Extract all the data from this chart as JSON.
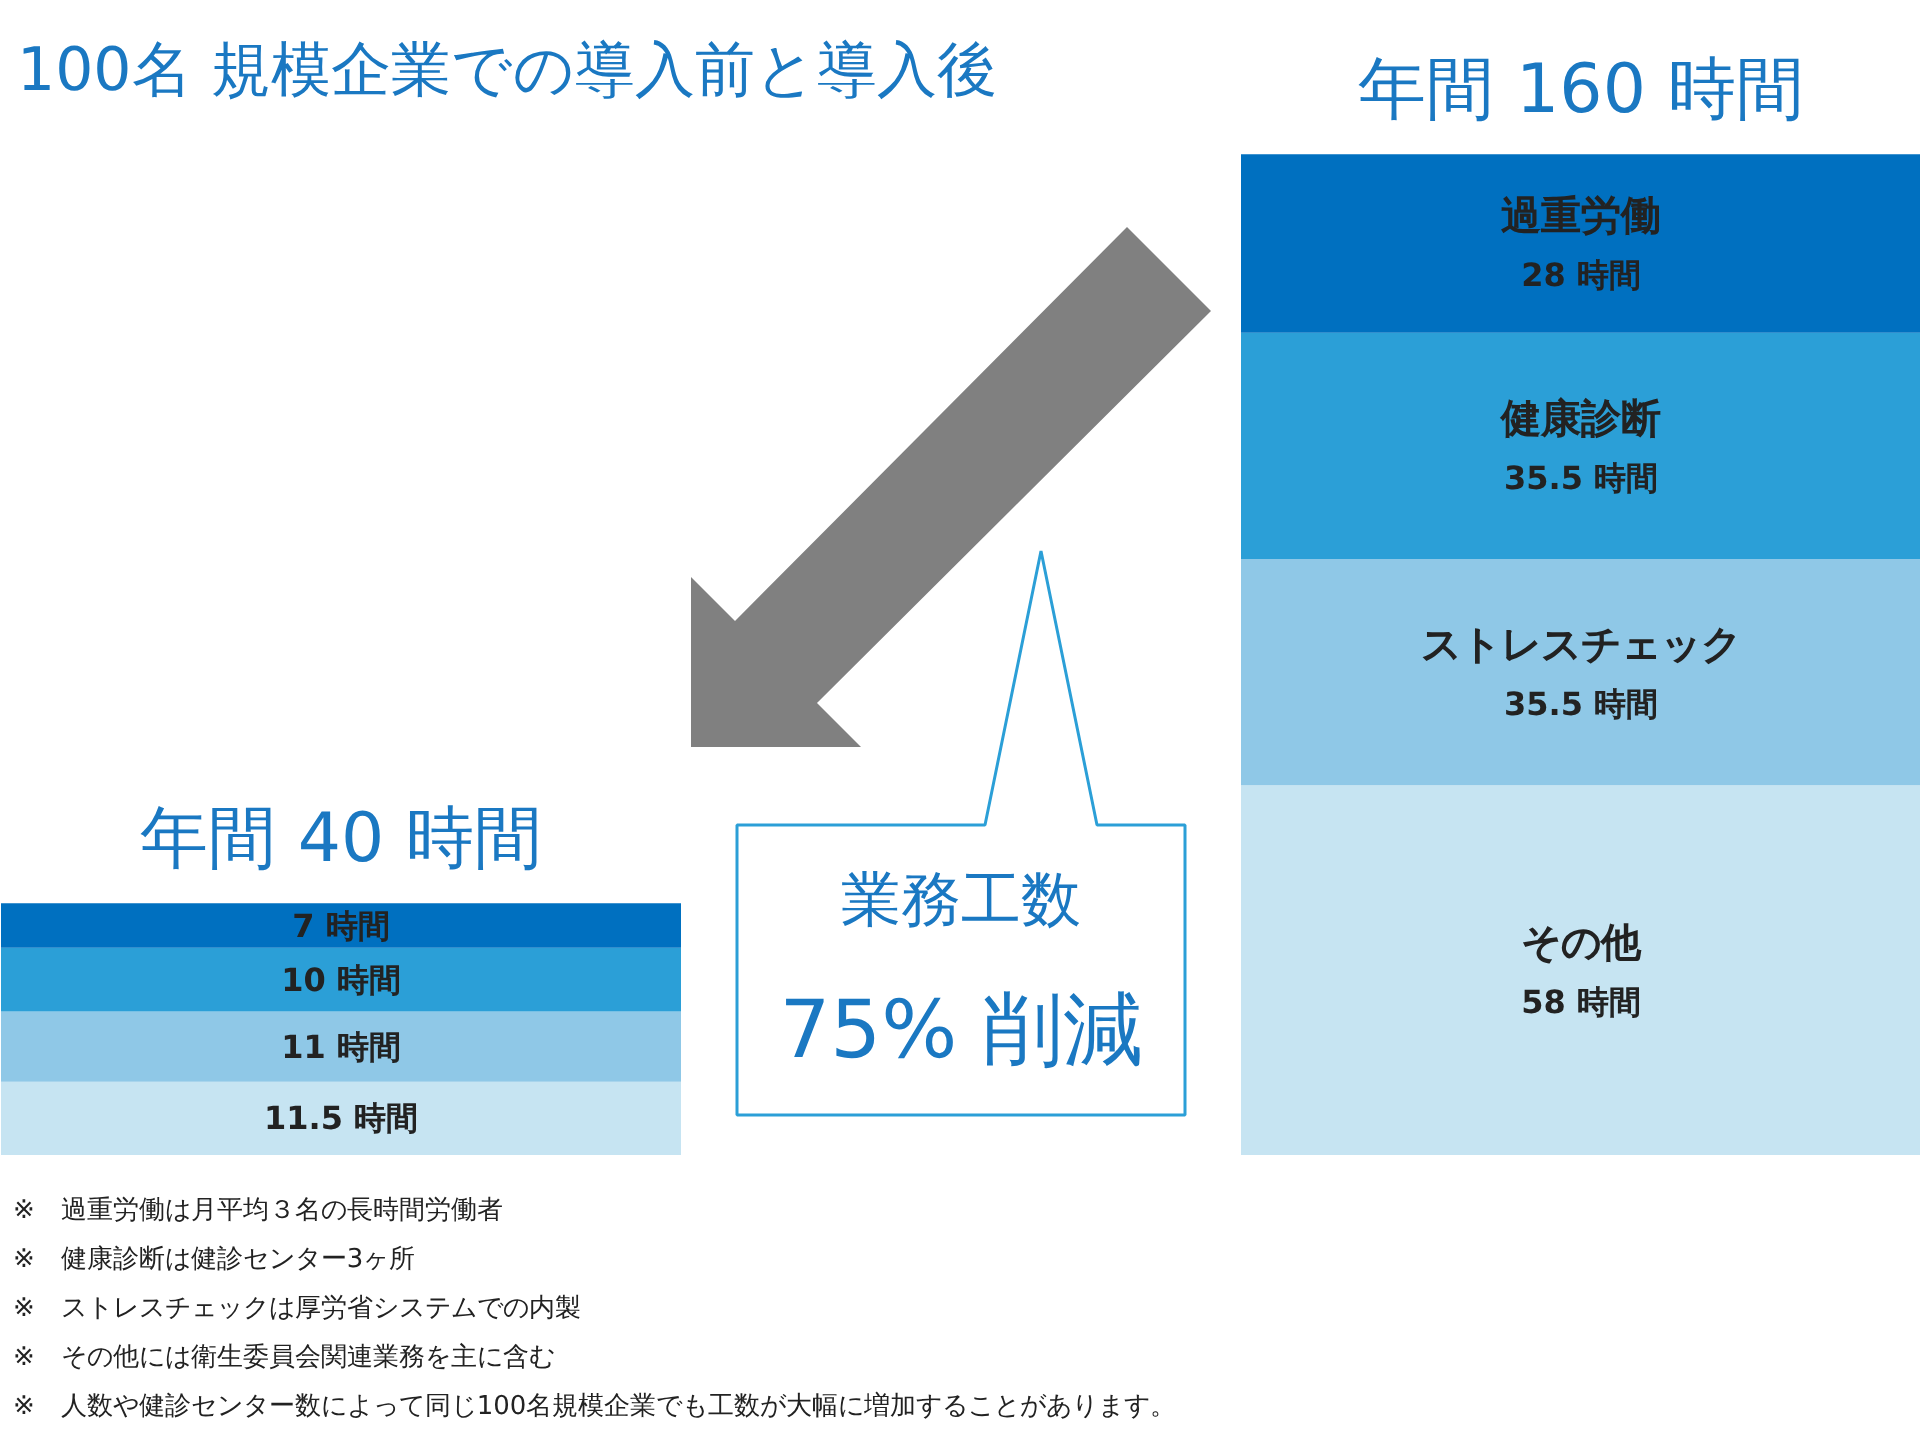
{
  "chart_data": {
    "type": "bar",
    "stacked": true,
    "title": "100名 規模企業での導入前と導入後",
    "categories": [
      null,
      null
    ],
    "totals": [
      "年間 40 時間",
      "年間 160 時間"
    ],
    "series": [
      {
        "name": "その他",
        "color": "#c6e4f2",
        "values": [
          11.5,
          58
        ],
        "value_labels": [
          "11.5 時間",
          "58 時間"
        ]
      },
      {
        "name": "ストレスチェック",
        "color": "#8fc8e7",
        "values": [
          11,
          35.5
        ],
        "value_labels": [
          "11 時間",
          "35.5 時間"
        ]
      },
      {
        "name": "健康診断",
        "color": "#2b9fd7",
        "values": [
          10,
          35.5
        ],
        "value_labels": [
          "10 時間",
          "35.5 時間"
        ]
      },
      {
        "name": "過重労働",
        "color": "#0070c0",
        "values": [
          7,
          28
        ],
        "value_labels": [
          "7 時間",
          "28 時間"
        ]
      }
    ],
    "annotations": [
      "業務工数",
      "75% 削減",
      "※　過重労働は月平均３名の長時間労働者",
      "※　健康診断は健診センター3ヶ所",
      "※　ストレスチェックは厚労省システムでの内製",
      "※　その他には衛生委員会関連業務を主に含む",
      "※　人数や健診センター数によって同じ100名規模企業でも工数が大幅に増加することがあります。"
    ]
  }
}
